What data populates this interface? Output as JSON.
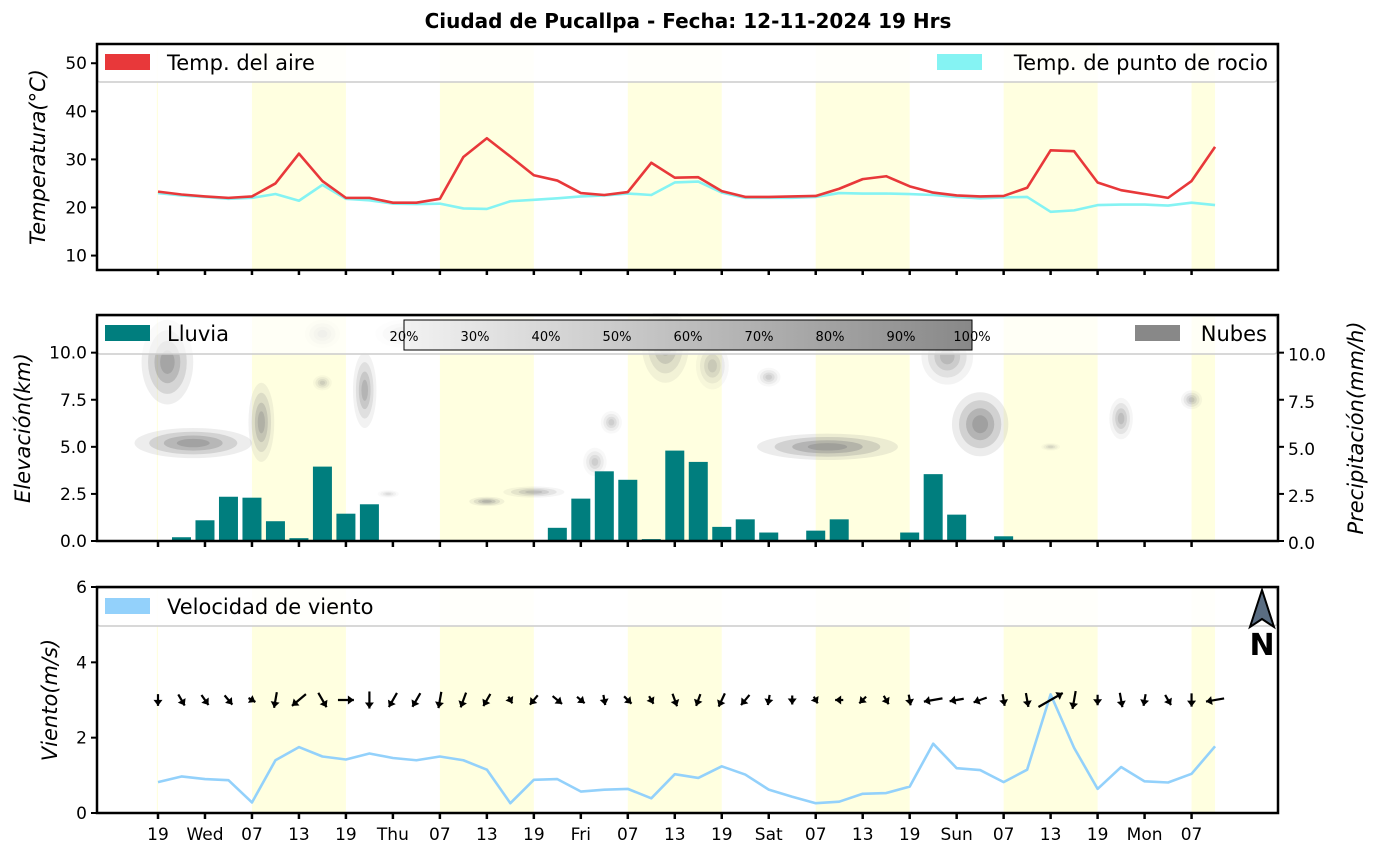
{
  "chart_data": [
    {
      "type": "line",
      "title": "Ciudad de Pucallpa   -   Fecha: 12-11-2024 19 Hrs",
      "ylabel": "Temperatura(°C)",
      "ylim": [
        7,
        54
      ],
      "yticks": [
        "10",
        "20",
        "30",
        "40",
        "50"
      ],
      "ytick_values": [
        10,
        20,
        30,
        40,
        50
      ],
      "legend": {
        "air": "Temp. del aire",
        "dew": "Temp. de punto de rocio"
      },
      "colors": {
        "air": "#e8383a",
        "dew": "#85f3f3"
      },
      "series": [
        {
          "name": "Temp. del aire",
          "values": [
            23.3,
            22.7,
            22.3,
            22.0,
            22.3,
            25.0,
            31.2,
            25.5,
            22.0,
            22.0,
            21.0,
            21.0,
            21.8,
            30.5,
            34.4,
            30.6,
            26.7,
            25.6,
            23.0,
            22.6,
            23.2,
            29.3,
            26.2,
            26.3,
            23.4,
            22.2,
            22.2,
            22.3,
            22.4,
            23.9,
            25.9,
            26.5,
            24.4,
            23.1,
            22.5,
            22.3,
            22.4,
            24.1,
            31.9,
            31.7,
            25.2,
            23.6,
            22.8,
            22.0,
            25.5,
            32.6
          ]
        },
        {
          "name": "Temp. de punto de rocio",
          "values": [
            23.0,
            22.5,
            22.2,
            21.8,
            22.0,
            22.8,
            21.4,
            24.7,
            21.8,
            21.5,
            20.8,
            20.7,
            20.8,
            19.8,
            19.7,
            21.3,
            21.6,
            21.9,
            22.3,
            22.5,
            22.9,
            22.6,
            25.2,
            25.4,
            23.1,
            22.0,
            22.0,
            22.0,
            22.2,
            23.0,
            22.9,
            22.9,
            22.8,
            22.6,
            22.2,
            21.9,
            22.1,
            22.2,
            19.1,
            19.4,
            20.5,
            20.6,
            20.6,
            20.4,
            21.0,
            20.5
          ]
        }
      ]
    },
    {
      "type": "bar",
      "ylabel_left": "Elevación(km)",
      "ylabel_right": "Precipitación(mm/h)",
      "ylim": [
        0,
        12
      ],
      "yticks_left": [
        "0.0",
        "2.5",
        "5.0",
        "7.5",
        "10.0"
      ],
      "yticks_right": [
        "0.0",
        "2.5",
        "5.0",
        "7.5",
        "10.0"
      ],
      "ytick_values": [
        0,
        2.5,
        5,
        7.5,
        10
      ],
      "legend": {
        "rain": "Lluvia",
        "clouds": "Nubes"
      },
      "colors": {
        "rain": "#007e7e",
        "clouds": "#888888"
      },
      "colorbar_labels": [
        "20%",
        "30%",
        "40%",
        "50%",
        "60%",
        "70%",
        "80%",
        "90%",
        "100%"
      ],
      "values": [
        0.0,
        0.2,
        1.1,
        2.35,
        2.3,
        1.05,
        0.15,
        3.95,
        1.45,
        1.95,
        0.05,
        0.05,
        0.05,
        0.05,
        0.05,
        0.05,
        0.05,
        0.7,
        2.25,
        3.7,
        3.25,
        0.1,
        4.8,
        4.2,
        0.75,
        1.15,
        0.45,
        0.0,
        0.55,
        1.15,
        0.05,
        0.05,
        0.45,
        3.55,
        1.4,
        0.0,
        0.25,
        0.05,
        0.05,
        0.05,
        0.05,
        0.05,
        0.05,
        0.05,
        0.05,
        0.05
      ],
      "clouds": [
        {
          "x": 0.4,
          "y": 9.5,
          "w": 2.2,
          "h": 4.5,
          "op": 0.75
        },
        {
          "x": 1.5,
          "y": 5.2,
          "w": 5.0,
          "h": 1.6,
          "op": 0.8
        },
        {
          "x": 4.4,
          "y": 6.3,
          "w": 1.1,
          "h": 4.2,
          "op": 0.6
        },
        {
          "x": 7.0,
          "y": 8.4,
          "w": 0.8,
          "h": 0.8,
          "op": 0.3
        },
        {
          "x": 8.8,
          "y": 8.0,
          "w": 1.0,
          "h": 4.0,
          "op": 0.55
        },
        {
          "x": 10.5,
          "y": 11.0,
          "w": 2.5,
          "h": 1.5,
          "op": 0.35
        },
        {
          "x": 9.8,
          "y": 2.5,
          "w": 0.9,
          "h": 0.4,
          "op": 0.2
        },
        {
          "x": 14.0,
          "y": 2.1,
          "w": 1.5,
          "h": 0.5,
          "op": 0.55
        },
        {
          "x": 16.0,
          "y": 2.6,
          "w": 2.6,
          "h": 0.6,
          "op": 0.45
        },
        {
          "x": 18.6,
          "y": 4.2,
          "w": 1.0,
          "h": 1.5,
          "op": 0.3
        },
        {
          "x": 19.3,
          "y": 6.3,
          "w": 0.9,
          "h": 1.2,
          "op": 0.3
        },
        {
          "x": 21.6,
          "y": 10.4,
          "w": 2.0,
          "h": 4.0,
          "op": 0.55
        },
        {
          "x": 23.6,
          "y": 9.3,
          "w": 1.4,
          "h": 2.5,
          "op": 0.35
        },
        {
          "x": 26.0,
          "y": 8.7,
          "w": 1.0,
          "h": 1.0,
          "op": 0.3
        },
        {
          "x": 28.5,
          "y": 5.0,
          "w": 6.0,
          "h": 1.4,
          "op": 0.82
        },
        {
          "x": 33.6,
          "y": 9.8,
          "w": 2.2,
          "h": 3.0,
          "op": 0.5
        },
        {
          "x": 35.0,
          "y": 6.2,
          "w": 2.4,
          "h": 3.4,
          "op": 0.82
        },
        {
          "x": 38.0,
          "y": 5.0,
          "w": 0.8,
          "h": 0.4,
          "op": 0.25
        },
        {
          "x": 41.0,
          "y": 6.5,
          "w": 1.0,
          "h": 2.2,
          "op": 0.45
        },
        {
          "x": 44.0,
          "y": 7.5,
          "w": 0.9,
          "h": 1.0,
          "op": 0.4
        },
        {
          "x": 7.0,
          "y": 11.0,
          "w": 1.5,
          "h": 1.5,
          "op": 0.3
        }
      ]
    },
    {
      "type": "line",
      "ylabel": "Viento(m/s)",
      "ylim": [
        0,
        6
      ],
      "yticks": [
        "0",
        "2",
        "4",
        "6"
      ],
      "ytick_values": [
        0,
        2,
        4,
        6
      ],
      "legend": {
        "wind": "Velocidad de viento"
      },
      "colors": {
        "wind": "#93d1fb"
      },
      "north_label": "N",
      "values": [
        0.82,
        0.97,
        0.9,
        0.87,
        0.28,
        1.4,
        1.75,
        1.5,
        1.42,
        1.58,
        1.46,
        1.4,
        1.5,
        1.4,
        1.15,
        0.26,
        0.88,
        0.9,
        0.57,
        0.62,
        0.64,
        0.39,
        1.03,
        0.93,
        1.24,
        1.02,
        0.62,
        0.43,
        0.26,
        0.3,
        0.51,
        0.53,
        0.7,
        1.84,
        1.19,
        1.14,
        0.82,
        1.15,
        3.15,
        1.73,
        0.64,
        1.22,
        0.84,
        0.81,
        1.04,
        1.77
      ],
      "arrow_dirs": [
        90,
        60,
        55,
        50,
        30,
        100,
        140,
        60,
        0,
        90,
        120,
        120,
        100,
        110,
        120,
        60,
        130,
        40,
        40,
        80,
        45,
        60,
        70,
        110,
        115,
        130,
        100,
        90,
        60,
        180,
        135,
        60,
        80,
        170,
        170,
        160,
        80,
        80,
        -30,
        100,
        90,
        80,
        100,
        60,
        90,
        170
      ],
      "arrow_speeds": [
        0.82,
        0.97,
        0.9,
        0.87,
        0.28,
        1.4,
        1.75,
        1.5,
        1.42,
        1.58,
        1.46,
        1.4,
        1.5,
        1.4,
        1.15,
        0.26,
        0.88,
        0.9,
        0.57,
        0.62,
        0.64,
        0.39,
        1.03,
        0.93,
        1.24,
        1.02,
        0.62,
        0.43,
        0.26,
        0.3,
        0.51,
        0.53,
        0.7,
        1.84,
        1.19,
        1.14,
        0.82,
        1.15,
        3.15,
        1.73,
        0.64,
        1.22,
        0.84,
        0.81,
        1.04,
        1.77
      ]
    }
  ],
  "x_axis": {
    "labels": [
      "19",
      "Wed",
      "07",
      "13",
      "19",
      "Thu",
      "07",
      "13",
      "19",
      "Fri",
      "07",
      "13",
      "19",
      "Sat",
      "07",
      "13",
      "19",
      "Sun",
      "07",
      "13",
      "19",
      "Mon",
      "07"
    ],
    "day_bands": [
      [
        -0.05,
        0.0
      ],
      [
        4.0,
        8.0
      ],
      [
        12.0,
        16.0
      ],
      [
        20.0,
        24.0
      ],
      [
        28.0,
        32.0
      ],
      [
        36.0,
        40.0
      ],
      [
        44.0,
        45.0
      ]
    ],
    "band_color": "#ffffe0"
  }
}
